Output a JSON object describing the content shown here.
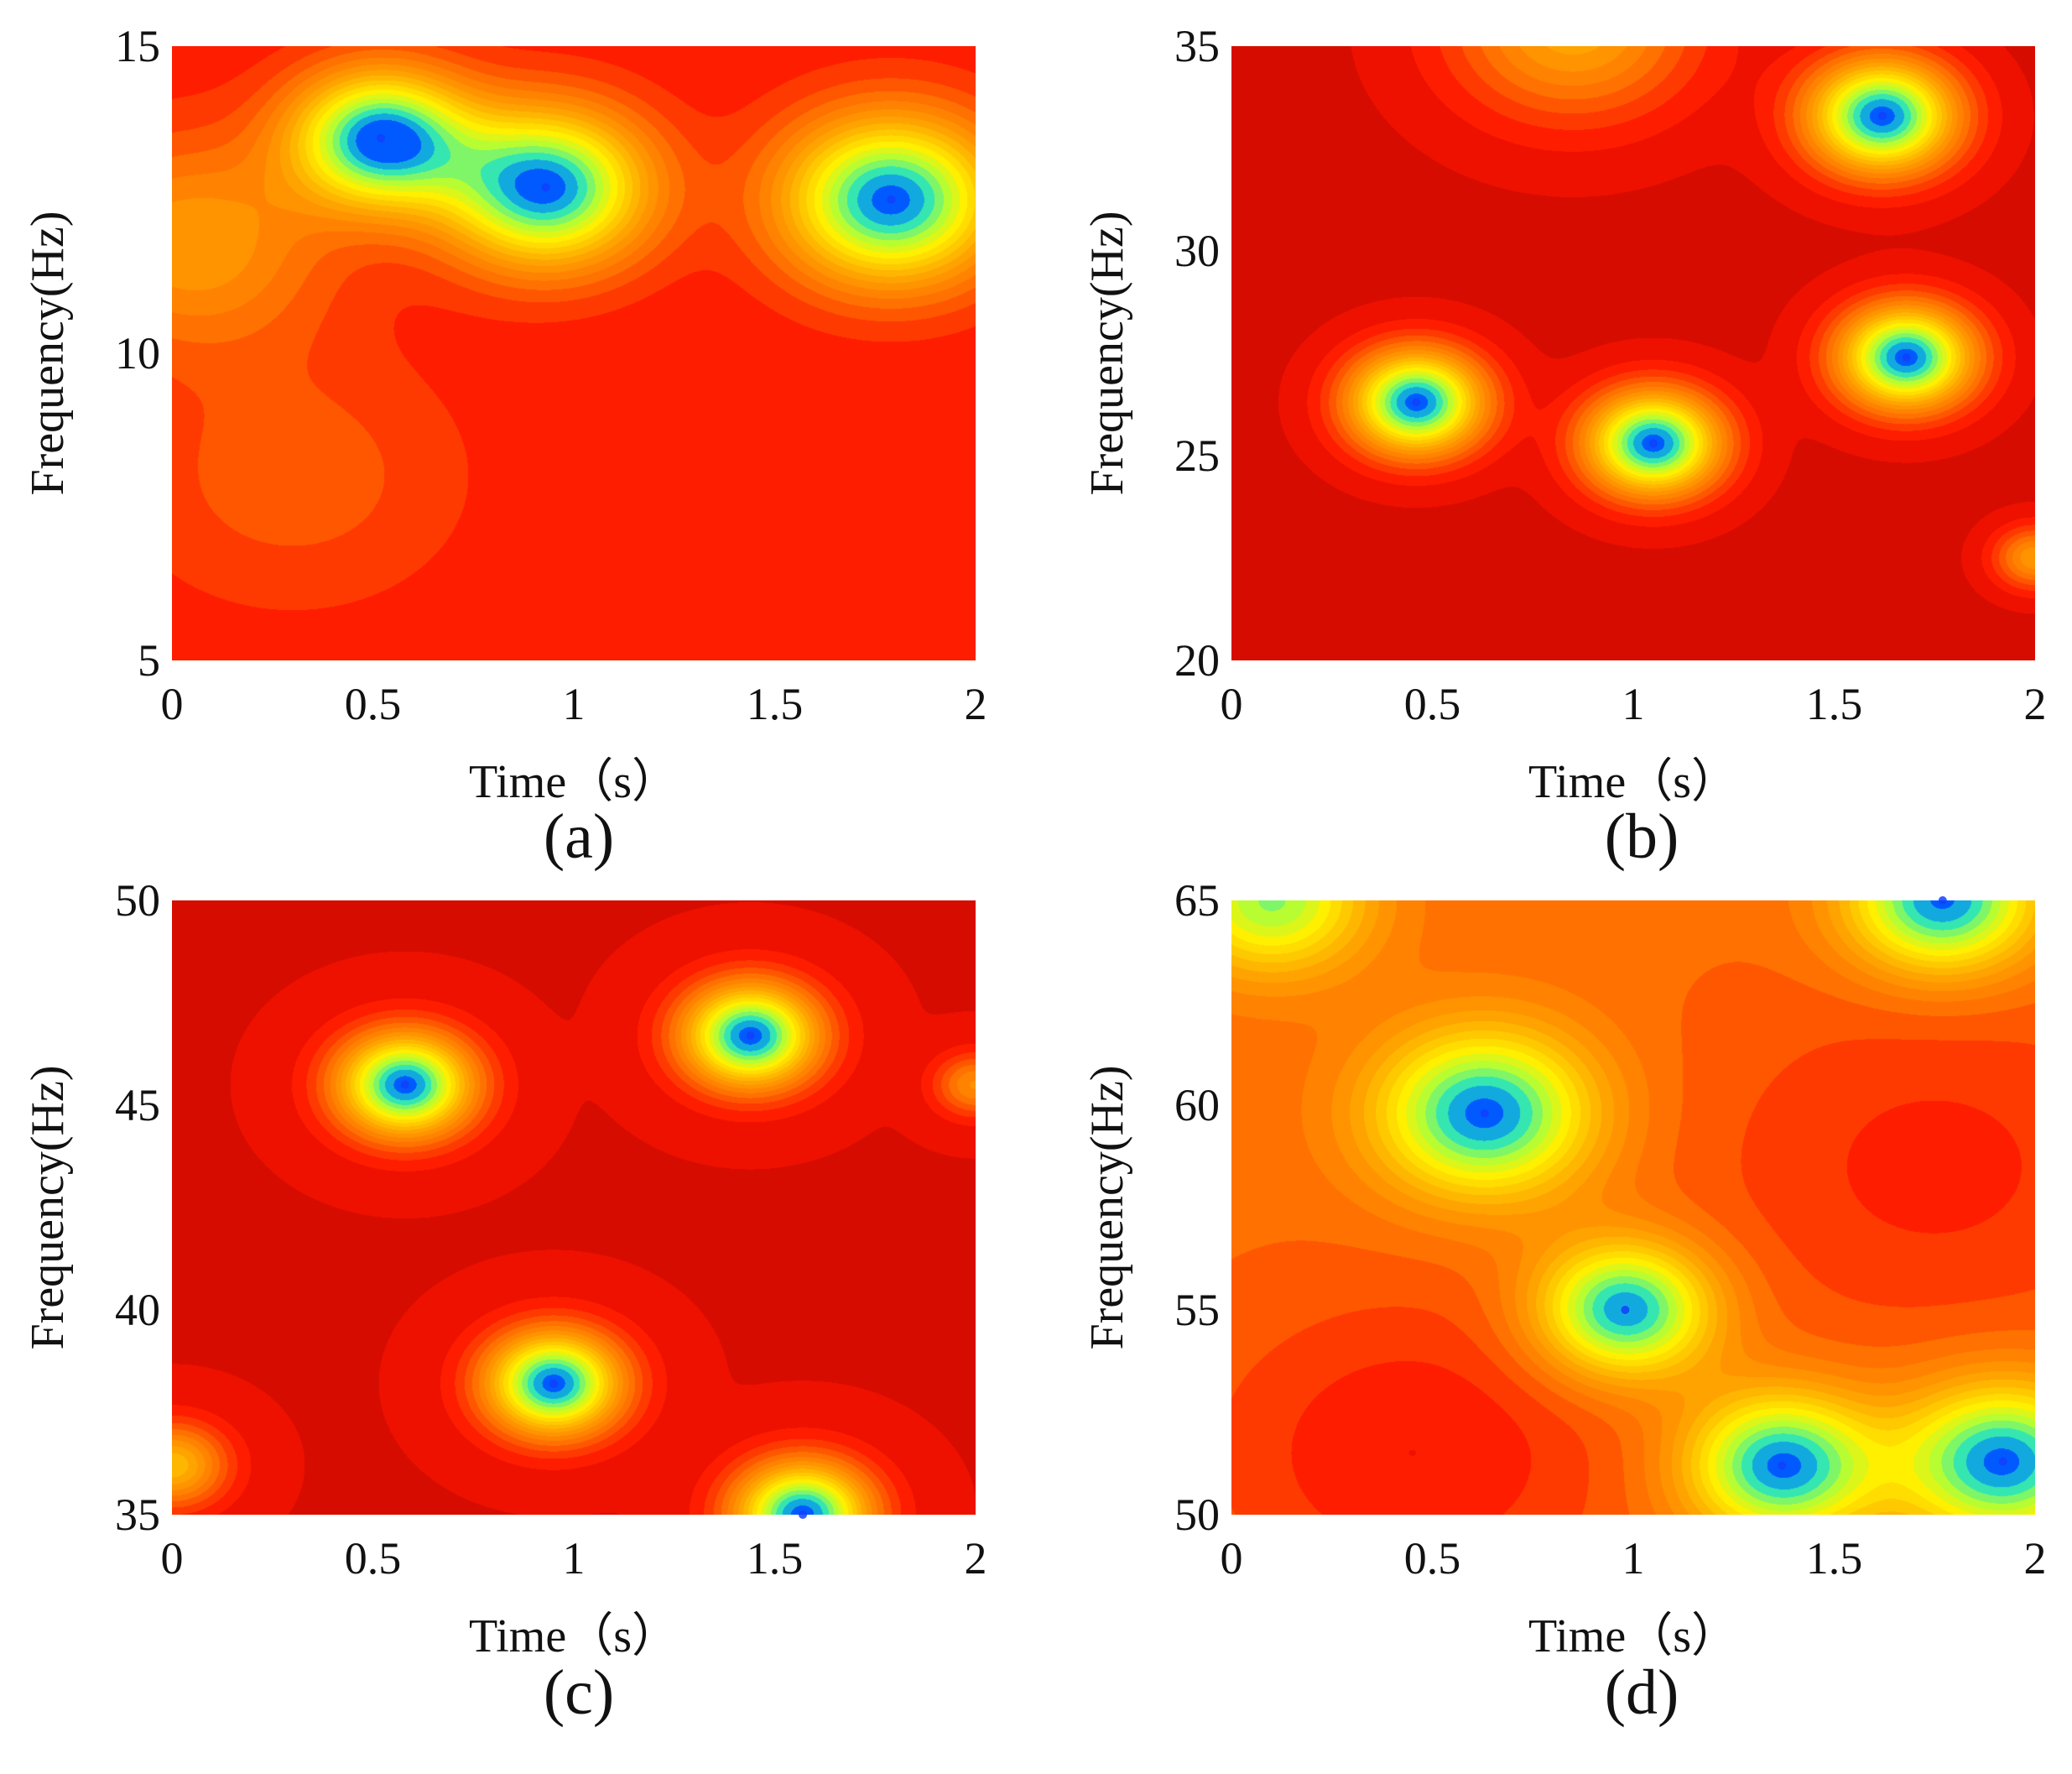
{
  "chart_data": [
    {
      "type": "heatmap",
      "panel_label": "(a)",
      "xlabel": "Time（s）",
      "ylabel": "Frequency(Hz)",
      "xlim": [
        0,
        2
      ],
      "ylim": [
        5,
        15
      ],
      "x_ticks": [
        0,
        0.5,
        1,
        1.5,
        2
      ],
      "x_tick_labels": [
        "0",
        "0.5",
        "1",
        "1.5",
        "2"
      ],
      "y_ticks": [
        5,
        10,
        15
      ],
      "y_tick_labels": [
        "5",
        "10",
        "15"
      ],
      "background_level": 0.32,
      "peaks": [
        {
          "time": 0.52,
          "freq": 13.5,
          "intensity": 1.0,
          "spread": 0.13
        },
        {
          "time": 0.93,
          "freq": 12.7,
          "intensity": 1.0,
          "spread": 0.15
        },
        {
          "time": 1.79,
          "freq": 12.5,
          "intensity": 1.0,
          "spread": 0.16
        },
        {
          "time": 0.05,
          "freq": 11.8,
          "intensity": 0.35,
          "spread": 0.2
        },
        {
          "time": 0.3,
          "freq": 8.0,
          "intensity": 0.15,
          "spread": 0.25
        }
      ]
    },
    {
      "type": "heatmap",
      "panel_label": "(b)",
      "xlabel": "Time（s）",
      "ylabel": "Frequency(Hz)",
      "xlim": [
        0,
        2
      ],
      "ylim": [
        20,
        35
      ],
      "x_ticks": [
        0,
        0.5,
        1,
        1.5,
        2
      ],
      "x_tick_labels": [
        "0",
        "0.5",
        "1",
        "1.5",
        "2"
      ],
      "y_ticks": [
        20,
        25,
        30,
        35
      ],
      "y_tick_labels": [
        "20",
        "25",
        "30",
        "35"
      ],
      "background_level": 0.26,
      "peaks": [
        {
          "time": 1.62,
          "freq": 33.3,
          "intensity": 1.0,
          "spread": 0.11
        },
        {
          "time": 1.68,
          "freq": 27.4,
          "intensity": 1.0,
          "spread": 0.1
        },
        {
          "time": 0.46,
          "freq": 26.3,
          "intensity": 1.0,
          "spread": 0.1
        },
        {
          "time": 1.05,
          "freq": 25.3,
          "intensity": 1.0,
          "spread": 0.1
        },
        {
          "time": 0.85,
          "freq": 35.5,
          "intensity": 0.45,
          "spread": 0.18
        },
        {
          "time": 2.0,
          "freq": 22.5,
          "intensity": 0.4,
          "spread": 0.06
        }
      ]
    },
    {
      "type": "heatmap",
      "panel_label": "(c)",
      "xlabel": "Time（s）",
      "ylabel": "Frequency(Hz)",
      "xlim": [
        0,
        2
      ],
      "ylim": [
        35,
        50
      ],
      "x_ticks": [
        0,
        0.5,
        1,
        1.5,
        2
      ],
      "x_tick_labels": [
        "0",
        "0.5",
        "1",
        "1.5",
        "2"
      ],
      "y_ticks": [
        35,
        40,
        45,
        50
      ],
      "y_tick_labels": [
        "35",
        "40",
        "45",
        "50"
      ],
      "background_level": 0.27,
      "peaks": [
        {
          "time": 0.58,
          "freq": 45.5,
          "intensity": 1.0,
          "spread": 0.1
        },
        {
          "time": 1.44,
          "freq": 46.7,
          "intensity": 1.0,
          "spread": 0.1
        },
        {
          "time": 0.95,
          "freq": 38.2,
          "intensity": 1.0,
          "spread": 0.1
        },
        {
          "time": 1.57,
          "freq": 35.0,
          "intensity": 1.0,
          "spread": 0.1
        },
        {
          "time": 0.0,
          "freq": 36.2,
          "intensity": 0.5,
          "spread": 0.08
        },
        {
          "time": 2.0,
          "freq": 45.5,
          "intensity": 0.35,
          "spread": 0.06
        }
      ]
    },
    {
      "type": "heatmap",
      "panel_label": "(d)",
      "xlabel": "Time（s）",
      "ylabel": "Frequency(Hz)",
      "xlim": [
        0,
        2
      ],
      "ylim": [
        50,
        65
      ],
      "x_ticks": [
        0,
        0.5,
        1,
        1.5,
        2
      ],
      "x_tick_labels": [
        "0",
        "0.5",
        "1",
        "1.5",
        "2"
      ],
      "y_ticks": [
        50,
        55,
        60,
        65
      ],
      "y_tick_labels": [
        "50",
        "55",
        "60",
        "65"
      ],
      "background_level": 0.45,
      "peaks": [
        {
          "time": 0.63,
          "freq": 59.8,
          "intensity": 1.0,
          "spread": 0.16
        },
        {
          "time": 0.98,
          "freq": 55.0,
          "intensity": 1.0,
          "spread": 0.13
        },
        {
          "time": 1.37,
          "freq": 51.2,
          "intensity": 1.0,
          "spread": 0.14
        },
        {
          "time": 1.92,
          "freq": 51.3,
          "intensity": 1.0,
          "spread": 0.15
        },
        {
          "time": 1.77,
          "freq": 65.0,
          "intensity": 1.0,
          "spread": 0.14
        },
        {
          "time": 0.1,
          "freq": 65.0,
          "intensity": 0.75,
          "spread": 0.14
        },
        {
          "time": 0.45,
          "freq": 51.5,
          "intensity": -0.25,
          "spread": 0.3
        },
        {
          "time": 1.75,
          "freq": 58.5,
          "intensity": -0.2,
          "spread": 0.35
        }
      ]
    }
  ]
}
